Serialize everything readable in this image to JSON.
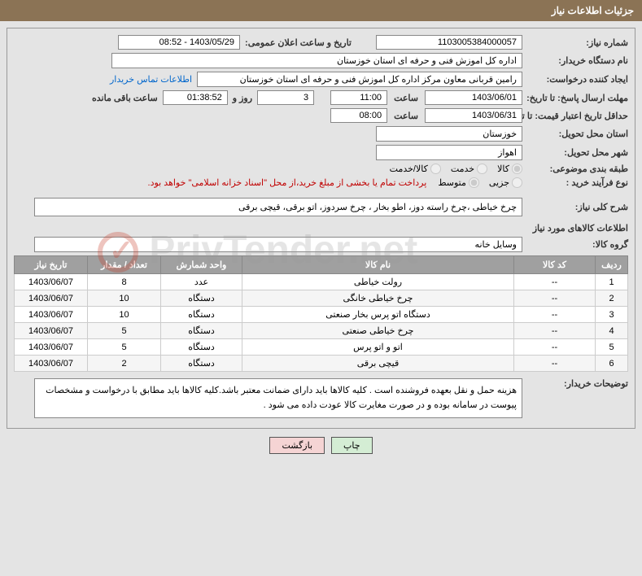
{
  "header": {
    "title": "جزئیات اطلاعات نیاز"
  },
  "fields": {
    "need_number_label": "شماره نیاز:",
    "need_number": "1103005384000057",
    "announce_label": "تاریخ و ساعت اعلان عمومی:",
    "announce_value": "1403/05/29 - 08:52",
    "buyer_org_label": "نام دستگاه خریدار:",
    "buyer_org": "اداره کل اموزش فنی و حرفه ای استان خوزستان",
    "requester_label": "ایجاد کننده درخواست:",
    "requester": "رامین قربانی معاون مرکز  اداره کل اموزش فنی و حرفه ای استان خوزستان",
    "contact_link": "اطلاعات تماس خریدار",
    "reply_until_label": "مهلت ارسال پاسخ: تا تاریخ:",
    "reply_date": "1403/06/01",
    "time_label": "ساعت",
    "reply_time": "11:00",
    "days_label": "روز و",
    "days_value": "3",
    "countdown": "01:38:52",
    "remaining_label": "ساعت باقی مانده",
    "valid_until_label": "حداقل تاریخ اعتبار قیمت: تا تاریخ:",
    "valid_date": "1403/06/31",
    "valid_time": "08:00",
    "delivery_prov_label": "استان محل تحویل:",
    "delivery_prov": "خوزستان",
    "delivery_city_label": "شهر محل تحویل:",
    "delivery_city": "اهواز",
    "category_label": "طبقه بندی موضوعی:",
    "cat_goods": "کالا",
    "cat_service": "خدمت",
    "cat_both": "کالا/خدمت",
    "process_label": "نوع فرآیند خرید :",
    "proc_partial": "جزیی",
    "proc_medium": "متوسط",
    "process_note": "پرداخت تمام یا بخشی از مبلغ خرید،از محل \"اسناد خزانه اسلامی\" خواهد بود.",
    "desc_label": "شرح کلی نیاز:",
    "desc_value": "چرخ خیاطی ،چرخ راسته دوز، اطو بخار ، چرخ سردوز، اتو برقی، قیچی برقی",
    "goods_section": "اطلاعات کالاهای مورد نیاز",
    "group_label": "گروه کالا:",
    "group_value": "وسایل خانه",
    "buyer_notes_label": "توضیحات خریدار:",
    "buyer_notes": "هزینه حمل و نقل بعهده فروشنده است . کلیه کالاها باید دارای ضمانت معتبر باشد.کلیه کالاها باید مطابق با درخواست و مشخصات پیوست در سامانه بوده و در صورت مغایرت کالا عودت داده می شود ."
  },
  "table": {
    "headers": {
      "row": "ردیف",
      "code": "کد کالا",
      "name": "نام کالا",
      "unit": "واحد شمارش",
      "qty": "تعداد / مقدار",
      "date": "تاریخ نیاز"
    },
    "rows": [
      {
        "n": "1",
        "code": "--",
        "name": "رولت خیاطی",
        "unit": "عدد",
        "qty": "8",
        "date": "1403/06/07"
      },
      {
        "n": "2",
        "code": "--",
        "name": "چرخ خیاطی خانگی",
        "unit": "دستگاه",
        "qty": "10",
        "date": "1403/06/07"
      },
      {
        "n": "3",
        "code": "--",
        "name": "دستگاه اتو پرس بخار صنعتی",
        "unit": "دستگاه",
        "qty": "10",
        "date": "1403/06/07"
      },
      {
        "n": "4",
        "code": "--",
        "name": "چرخ خیاطی صنعتی",
        "unit": "دستگاه",
        "qty": "5",
        "date": "1403/06/07"
      },
      {
        "n": "5",
        "code": "--",
        "name": "اتو و اتو پرس",
        "unit": "دستگاه",
        "qty": "5",
        "date": "1403/06/07"
      },
      {
        "n": "6",
        "code": "--",
        "name": "قیچی برقی",
        "unit": "دستگاه",
        "qty": "2",
        "date": "1403/06/07"
      }
    ]
  },
  "buttons": {
    "print": "چاپ",
    "back": "بازگشت"
  },
  "watermark": "PrivTender.net"
}
